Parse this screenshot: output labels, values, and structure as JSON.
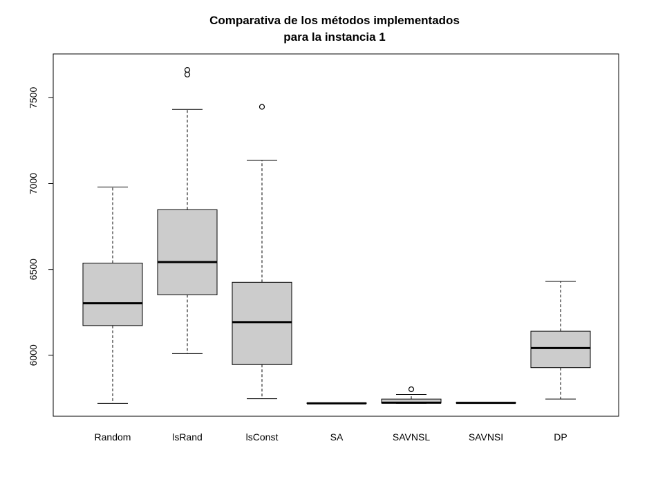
{
  "chart_data": {
    "type": "boxplot",
    "title": [
      "Comparativa de los métodos implementados",
      "para la instancia 1"
    ],
    "xlabel": "",
    "ylabel": "",
    "ylim": [
      5645,
      7755
    ],
    "yticks": [
      6000,
      6500,
      7000,
      7500
    ],
    "ytick_labels": [
      "6000",
      "6500",
      "7000",
      "7500"
    ],
    "grid": false,
    "legend": "none",
    "box_color": "#cccccc",
    "categories": [
      "Random",
      "lsRand",
      "lsConst",
      "SA",
      "SAVNSL",
      "SAVNSI",
      "DP"
    ],
    "boxes": [
      {
        "name": "Random",
        "whisker_low": 5720,
        "q1": 6173,
        "median": 6303,
        "q3": 6537,
        "whisker_high": 6980,
        "outliers": []
      },
      {
        "name": "lsRand",
        "whisker_low": 6010,
        "q1": 6352,
        "median": 6543,
        "q3": 6848,
        "whisker_high": 7432,
        "outliers": [
          7635,
          7662
        ]
      },
      {
        "name": "lsConst",
        "whisker_low": 5747,
        "q1": 5946,
        "median": 6193,
        "q3": 6425,
        "whisker_high": 7135,
        "outliers": [
          7447
        ]
      },
      {
        "name": "SA",
        "whisker_low": 5720,
        "q1": 5720,
        "median": 5720,
        "q3": 5722,
        "whisker_high": 5722,
        "outliers": []
      },
      {
        "name": "SAVNSL",
        "whisker_low": 5720,
        "q1": 5722,
        "median": 5724,
        "q3": 5745,
        "whisker_high": 5772,
        "outliers": [
          5802
        ]
      },
      {
        "name": "SAVNSI",
        "whisker_low": 5722,
        "q1": 5722,
        "median": 5723,
        "q3": 5724,
        "whisker_high": 5724,
        "outliers": []
      },
      {
        "name": "DP",
        "whisker_low": 5745,
        "q1": 5928,
        "median": 6042,
        "q3": 6140,
        "whisker_high": 6430,
        "outliers": []
      }
    ]
  }
}
